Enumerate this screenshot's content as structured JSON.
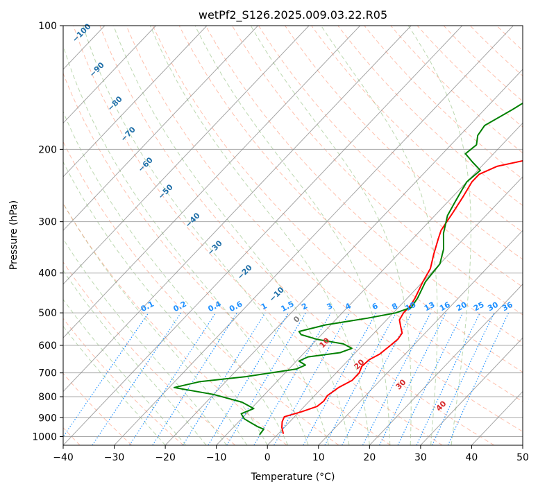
{
  "chart_data": {
    "type": "line",
    "title": "wetPf2_S126.2025.009.03.22.R05",
    "xlabel": "Temperature (°C)",
    "ylabel": "Pressure (hPa)",
    "xlim": [
      -40,
      50
    ],
    "ylim": [
      1050,
      100
    ],
    "yscale": "log",
    "grid": true,
    "x_ticks": [
      -40,
      -30,
      -20,
      -10,
      0,
      10,
      20,
      30,
      40,
      50
    ],
    "y_ticks": [
      1000,
      900,
      800,
      700,
      600,
      500,
      400,
      300,
      200,
      100
    ],
    "x_tick_labels": [
      "−40",
      "−30",
      "−20",
      "−10",
      "0",
      "10",
      "20",
      "30",
      "40",
      "50"
    ],
    "y_tick_labels": [
      "1000",
      "900",
      "800",
      "700",
      "600",
      "500",
      "400",
      "300",
      "200",
      "100"
    ],
    "colors": {
      "temperature": "#ff0000",
      "dewpoint": "#008000",
      "dry_adiabat": "#ff8c69",
      "moist_adiabat": "#6aa84f",
      "mixing_ratio": "#1e90ff",
      "isotherm": "#808080",
      "isotherm_label": "#1f6fa8",
      "positive_isotherm_label": "#d62728"
    },
    "series": [
      {
        "key": "temperature",
        "points": [
          [
            1.0,
            985
          ],
          [
            -0.5,
            950
          ],
          [
            -1.5,
            920
          ],
          [
            -2.0,
            895
          ],
          [
            0.5,
            870
          ],
          [
            2.5,
            845
          ],
          [
            2.8,
            820
          ],
          [
            2.5,
            795
          ],
          [
            3.2,
            760
          ],
          [
            4.5,
            730
          ],
          [
            4.5,
            700
          ],
          [
            3.8,
            675
          ],
          [
            4.0,
            650
          ],
          [
            5.0,
            630
          ],
          [
            5.5,
            600
          ],
          [
            5.8,
            580
          ],
          [
            5.5,
            560
          ],
          [
            4.0,
            540
          ],
          [
            2.5,
            520
          ],
          [
            2.0,
            500
          ],
          [
            2.0,
            480
          ],
          [
            1.5,
            460
          ],
          [
            0.0,
            420
          ],
          [
            -1.0,
            390
          ],
          [
            -3.0,
            360
          ],
          [
            -5.0,
            330
          ],
          [
            -6.0,
            315
          ],
          [
            -6.5,
            300
          ],
          [
            -7.0,
            285
          ],
          [
            -8.0,
            260
          ],
          [
            -9.0,
            240
          ],
          [
            -9.0,
            230
          ],
          [
            -7.0,
            220
          ],
          [
            -1.0,
            210
          ],
          [
            7.0,
            195
          ],
          [
            18.0,
            175
          ],
          [
            27.0,
            155
          ],
          [
            33.0,
            140
          ],
          [
            38.0,
            128
          ],
          [
            45.0,
            115
          ],
          [
            53.0,
            101
          ]
        ]
      },
      {
        "key": "dewpoint",
        "points": [
          [
            -3.5,
            990
          ],
          [
            -3.7,
            960
          ],
          [
            -5.5,
            945
          ],
          [
            -7.5,
            925
          ],
          [
            -9.5,
            905
          ],
          [
            -11.0,
            880
          ],
          [
            -9.5,
            855
          ],
          [
            -13.0,
            825
          ],
          [
            -20.0,
            790
          ],
          [
            -29.0,
            760
          ],
          [
            -25.0,
            735
          ],
          [
            -17.0,
            715
          ],
          [
            -8.5,
            685
          ],
          [
            -7.5,
            670
          ],
          [
            -9.5,
            655
          ],
          [
            -8.5,
            640
          ],
          [
            -3.0,
            625
          ],
          [
            -1.5,
            610
          ],
          [
            -4.0,
            595
          ],
          [
            -10.0,
            580
          ],
          [
            -14.0,
            565
          ],
          [
            -15.0,
            555
          ],
          [
            -11.0,
            535
          ],
          [
            -4.0,
            515
          ],
          [
            0.5,
            500
          ],
          [
            2.5,
            485
          ],
          [
            2.0,
            460
          ],
          [
            0.5,
            420
          ],
          [
            0.0,
            380
          ],
          [
            -2.0,
            350
          ],
          [
            -5.0,
            320
          ],
          [
            -7.5,
            290
          ],
          [
            -8.5,
            270
          ],
          [
            -9.5,
            250
          ],
          [
            -10.0,
            240
          ],
          [
            -9.5,
            225
          ],
          [
            -12.5,
            215
          ],
          [
            -15.5,
            205
          ],
          [
            -15.0,
            195
          ],
          [
            -16.5,
            185
          ],
          [
            -17.0,
            175
          ],
          [
            -14.5,
            160
          ],
          [
            -13.0,
            150
          ],
          [
            -12.0,
            140
          ],
          [
            -9.0,
            125
          ],
          [
            -6.0,
            115
          ],
          [
            -3.0,
            108
          ],
          [
            -1.0,
            101
          ]
        ]
      }
    ],
    "isotherm_labels": [
      "−100",
      "−90",
      "−80",
      "−70",
      "−60",
      "−50",
      "−40",
      "−30",
      "−20",
      "−10",
      "0",
      "10",
      "20",
      "30",
      "40"
    ],
    "mixing_ratio_labels": [
      "0.1",
      "0.2",
      "0.4",
      "0.6",
      "1",
      "1.5",
      "2",
      "3",
      "4",
      "6",
      "8",
      "10",
      "13",
      "16",
      "20",
      "25",
      "30",
      "36"
    ]
  }
}
